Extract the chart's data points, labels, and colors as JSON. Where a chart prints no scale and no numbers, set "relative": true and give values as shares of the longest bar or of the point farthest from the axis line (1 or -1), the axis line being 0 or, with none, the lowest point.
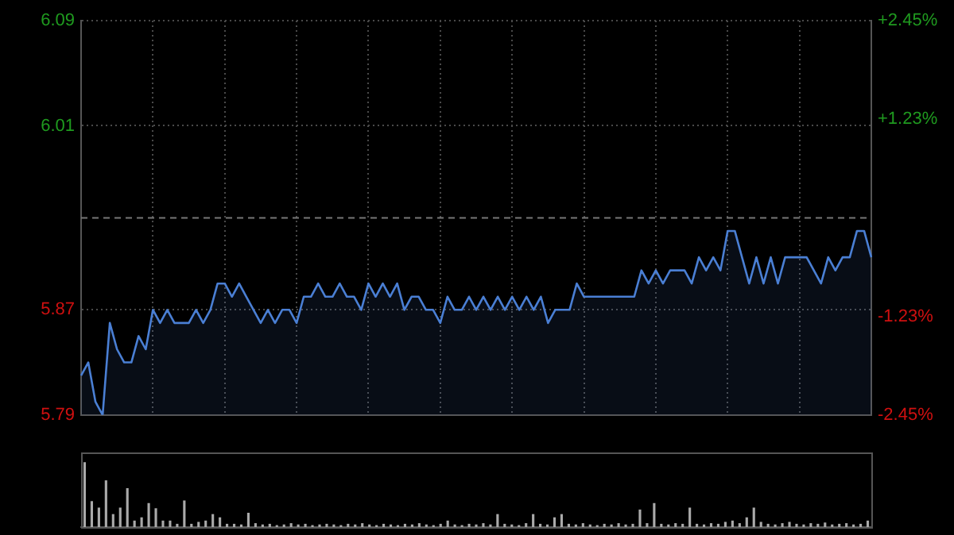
{
  "chart_data": [
    {
      "type": "area",
      "categories": [
        null,
        null,
        null,
        null,
        null,
        null,
        null,
        null,
        null,
        null,
        null,
        null,
        null,
        null,
        null,
        null,
        null,
        null,
        null,
        null,
        null,
        null,
        null,
        null,
        null,
        null,
        null,
        null,
        null,
        null,
        null,
        null,
        null,
        null,
        null,
        null,
        null,
        null,
        null,
        null,
        null,
        null,
        null,
        null,
        null,
        null,
        null,
        null,
        null,
        null,
        null,
        null,
        null,
        null,
        null,
        null,
        null,
        null,
        null,
        null,
        null,
        null,
        null,
        null,
        null,
        null,
        null,
        null,
        null,
        null,
        null,
        null,
        null,
        null,
        null,
        null,
        null,
        null,
        null,
        null,
        null,
        null,
        null,
        null,
        null,
        null,
        null,
        null,
        null,
        null,
        null,
        null,
        null,
        null,
        null,
        null,
        null,
        null,
        null,
        null,
        null,
        null,
        null,
        null,
        null,
        null,
        null,
        null,
        null,
        null,
        null
      ],
      "series": [
        {
          "color": "#4a7fd4",
          "values": [
            5.82,
            5.83,
            5.8,
            5.79,
            5.86,
            5.84,
            5.83,
            5.83,
            5.85,
            5.84,
            5.87,
            5.86,
            5.87,
            5.86,
            5.86,
            5.86,
            5.87,
            5.86,
            5.87,
            5.89,
            5.89,
            5.88,
            5.89,
            5.88,
            5.87,
            5.86,
            5.87,
            5.86,
            5.87,
            5.87,
            5.86,
            5.88,
            5.88,
            5.89,
            5.88,
            5.88,
            5.89,
            5.88,
            5.88,
            5.87,
            5.89,
            5.88,
            5.89,
            5.88,
            5.89,
            5.87,
            5.88,
            5.88,
            5.87,
            5.87,
            5.86,
            5.88,
            5.87,
            5.87,
            5.88,
            5.87,
            5.88,
            5.87,
            5.88,
            5.87,
            5.88,
            5.87,
            5.88,
            5.87,
            5.88,
            5.86,
            5.87,
            5.87,
            5.87,
            5.89,
            5.88,
            5.88,
            5.88,
            5.88,
            5.88,
            5.88,
            5.88,
            5.88,
            5.9,
            5.89,
            5.9,
            5.89,
            5.9,
            5.9,
            5.9,
            5.89,
            5.91,
            5.9,
            5.91,
            5.9,
            5.93,
            5.93,
            5.91,
            5.89,
            5.91,
            5.89,
            5.91,
            5.89,
            5.91,
            5.91,
            5.91,
            5.91,
            5.9,
            5.89,
            5.91,
            5.9,
            5.91,
            5.91,
            5.93,
            5.93,
            5.91
          ]
        }
      ],
      "ylim": [
        5.79,
        6.09
      ],
      "yticks": [
        5.79,
        5.87,
        6.01,
        6.09
      ],
      "y2lim": [
        -2.45,
        2.45
      ],
      "y2ticks": [
        {
          "value": -2.45,
          "label": "-2.45%"
        },
        {
          "value": -1.23,
          "label": "-1.23%"
        },
        {
          "value": 1.23,
          "label": "+1.23%"
        },
        {
          "value": 2.45,
          "label": "+2.45%"
        }
      ],
      "ref_lines": [
        {
          "axis": "y",
          "value": 5.94,
          "color": "#777777",
          "line_style": "dashed"
        }
      ],
      "grid": true
    },
    {
      "type": "bar",
      "relative": true,
      "color": "#aaaaaa",
      "categories": [
        null,
        null,
        null,
        null,
        null,
        null,
        null,
        null,
        null,
        null,
        null,
        null,
        null,
        null,
        null,
        null,
        null,
        null,
        null,
        null,
        null,
        null,
        null,
        null,
        null,
        null,
        null,
        null,
        null,
        null,
        null,
        null,
        null,
        null,
        null,
        null,
        null,
        null,
        null,
        null,
        null,
        null,
        null,
        null,
        null,
        null,
        null,
        null,
        null,
        null,
        null,
        null,
        null,
        null,
        null,
        null,
        null,
        null,
        null,
        null,
        null,
        null,
        null,
        null,
        null,
        null,
        null,
        null,
        null,
        null,
        null,
        null,
        null,
        null,
        null,
        null,
        null,
        null,
        null,
        null,
        null,
        null,
        null,
        null,
        null,
        null,
        null,
        null,
        null,
        null,
        null,
        null,
        null,
        null,
        null,
        null,
        null,
        null,
        null,
        null,
        null,
        null,
        null,
        null,
        null,
        null,
        null,
        null,
        null,
        null,
        null
      ],
      "values": [
        1,
        0.4,
        0.3,
        0.72,
        0.2,
        0.3,
        0.6,
        0.1,
        0.15,
        0.37,
        0.29,
        0.1,
        0.1,
        0.05,
        0.41,
        0.05,
        0.08,
        0.1,
        0.2,
        0.15,
        0.05,
        0.05,
        0.04,
        0.22,
        0.06,
        0.04,
        0.05,
        0.03,
        0.04,
        0.06,
        0.04,
        0.05,
        0.03,
        0.04,
        0.05,
        0.04,
        0.03,
        0.05,
        0.04,
        0.06,
        0.04,
        0.03,
        0.05,
        0.04,
        0.03,
        0.05,
        0.04,
        0.06,
        0.04,
        0.03,
        0.05,
        0.1,
        0.04,
        0.03,
        0.05,
        0.04,
        0.06,
        0.04,
        0.2,
        0.05,
        0.04,
        0.03,
        0.06,
        0.2,
        0.05,
        0.04,
        0.15,
        0.2,
        0.05,
        0.04,
        0.06,
        0.04,
        0.03,
        0.05,
        0.04,
        0.06,
        0.04,
        0.05,
        0.27,
        0.06,
        0.37,
        0.05,
        0.04,
        0.06,
        0.05,
        0.3,
        0.05,
        0.04,
        0.06,
        0.05,
        0.08,
        0.1,
        0.06,
        0.15,
        0.3,
        0.08,
        0.05,
        0.04,
        0.06,
        0.08,
        0.05,
        0.04,
        0.06,
        0.05,
        0.07,
        0.04,
        0.05,
        0.06,
        0.04,
        0.05,
        0.1
      ]
    }
  ]
}
